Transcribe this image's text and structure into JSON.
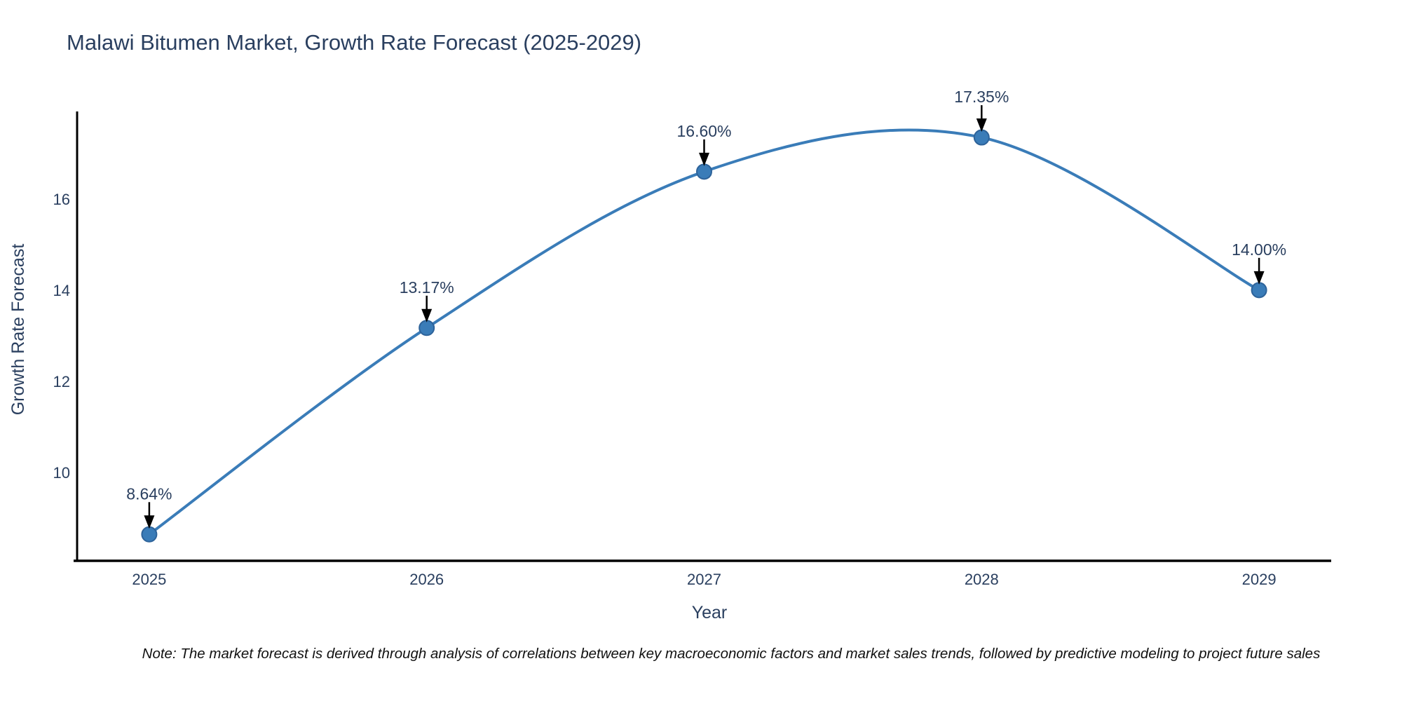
{
  "figure": {
    "title": "Malawi Bitumen Market, Growth Rate Forecast (2025-2029)",
    "note": "Note: The market forecast is derived through analysis of correlations between key macroeconomic factors and market sales trends, followed by predictive modeling to project future sales"
  },
  "chart_data": {
    "type": "line",
    "title": "Malawi Bitumen Market, Growth Rate Forecast (2025-2029)",
    "xlabel": "Year",
    "ylabel": "Growth Rate Forecast",
    "x": [
      2025,
      2026,
      2027,
      2028,
      2029
    ],
    "series": [
      {
        "name": "Growth Rate Forecast",
        "values": [
          8.64,
          13.17,
          16.6,
          17.35,
          14.0
        ]
      }
    ],
    "point_labels": [
      "8.64%",
      "13.17%",
      "16.60%",
      "17.35%",
      "14.00%"
    ],
    "xticks": [
      "2025",
      "2026",
      "2027",
      "2028",
      "2029"
    ],
    "yticks": [
      "10",
      "12",
      "14",
      "16"
    ],
    "xlim": [
      2024.74,
      2029.26
    ],
    "ylim": [
      8.06,
      17.92
    ],
    "line_shape": "spline",
    "grid": false,
    "legend": "none",
    "colors": {
      "line": "#3a7cb8",
      "marker": "#3a7cb8",
      "marker_edge": "#2e639a",
      "axis_line": "#000000",
      "tick_text": "#2a3f5f",
      "arrow": "#000000",
      "note": "#111111",
      "background": "#ffffff"
    }
  }
}
